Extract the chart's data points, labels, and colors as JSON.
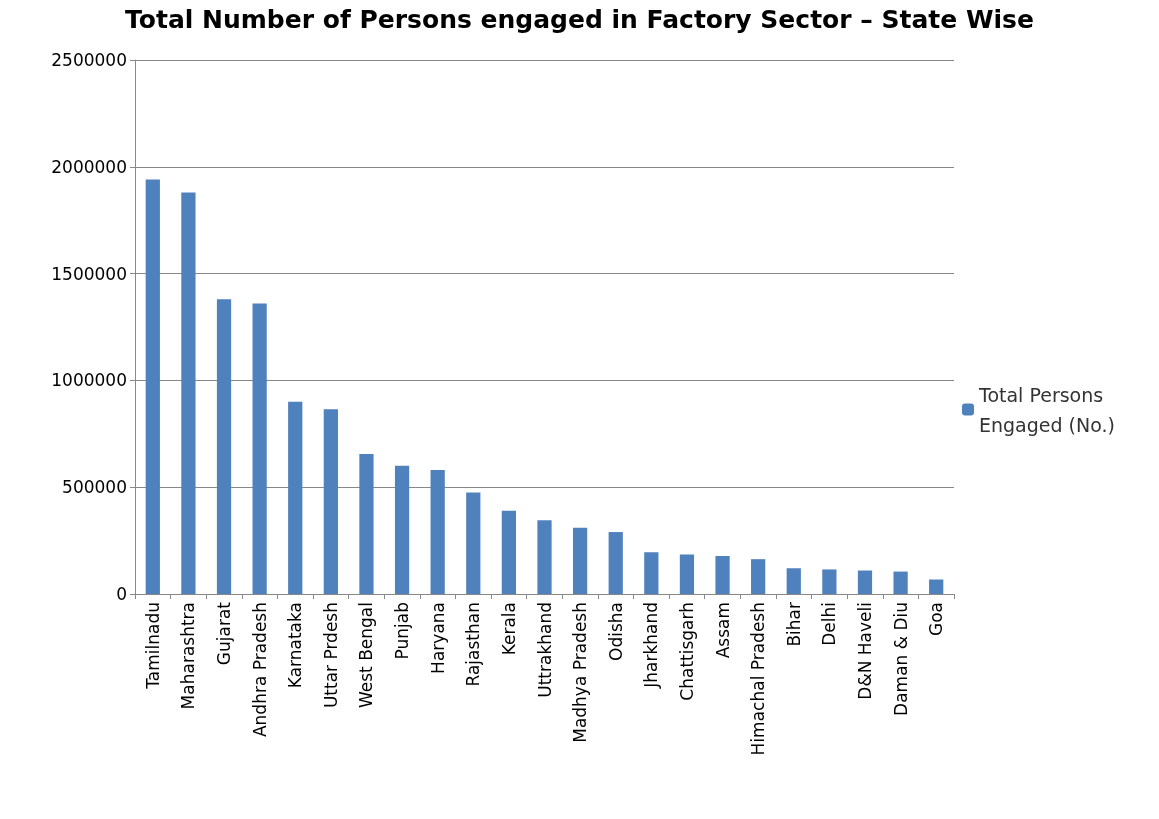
{
  "chart_data": {
    "type": "bar",
    "title": "Total Number of Persons engaged in Factory Sector – State Wise",
    "categories": [
      "Tamilnadu",
      "Maharashtra",
      "Gujarat",
      "Andhra Pradesh",
      "Karnataka",
      "Uttar Prdesh",
      "West Bengal",
      "Punjab",
      "Haryana",
      "Rajasthan",
      "Kerala",
      "Uttrakhand",
      "Madhya Pradesh",
      "Odisha",
      "Jharkhand",
      "Chattisgarh",
      "Assam",
      "Himachal Pradesh",
      "Bihar",
      "Delhi",
      "D&N Haveli",
      "Daman & Diu",
      "Goa"
    ],
    "series": [
      {
        "name": "Total Persons Engaged (No.)",
        "color": "#4f81bd",
        "values": [
          1940000,
          1880000,
          1380000,
          1360000,
          900000,
          865000,
          655000,
          600000,
          580000,
          475000,
          390000,
          345000,
          310000,
          290000,
          195000,
          185000,
          178000,
          163000,
          120000,
          115000,
          110000,
          105000,
          68000
        ]
      }
    ],
    "ylim": [
      0,
      2500000
    ],
    "yticks": [
      0,
      500000,
      1000000,
      1500000,
      2000000,
      2500000
    ],
    "grid": "y",
    "legend": "right"
  }
}
